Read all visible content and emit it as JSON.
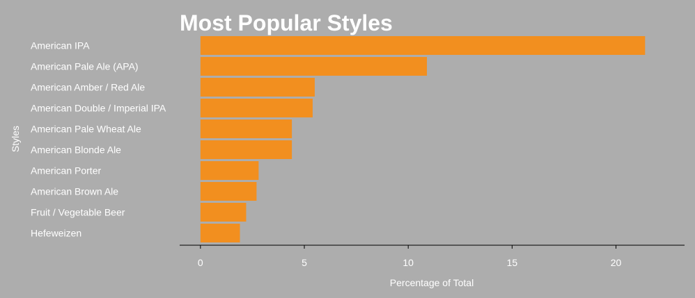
{
  "chart_data": {
    "type": "bar",
    "orientation": "horizontal",
    "title": "Most Popular Styles",
    "xlabel": "Percentage of Total",
    "ylabel": "Styles",
    "xlim": [
      -1,
      23.3
    ],
    "xticks": [
      0,
      5,
      10,
      15,
      20
    ],
    "grid": false,
    "categories": [
      "American IPA",
      "American Pale Ale (APA)",
      "American Amber / Red Ale",
      "American Double / Imperial IPA",
      "American Pale Wheat Ale",
      "American Blonde Ale",
      "American Porter",
      "American Brown Ale",
      "Fruit / Vegetable Beer",
      "Hefeweizen"
    ],
    "values": [
      21.4,
      10.9,
      5.5,
      5.4,
      4.4,
      4.4,
      2.8,
      2.7,
      2.2,
      1.9
    ]
  },
  "colors": {
    "background": "#adadad",
    "bar": "#f28f1f",
    "text": "#ffffff",
    "axis": "#000000"
  }
}
